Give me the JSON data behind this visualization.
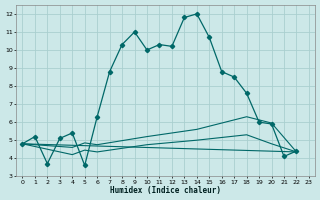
{
  "xlabel": "Humidex (Indice chaleur)",
  "bg_color": "#cce8e8",
  "grid_color": "#aacfcf",
  "line_color": "#006868",
  "xlim": [
    -0.5,
    23.5
  ],
  "ylim": [
    3,
    12.5
  ],
  "xticks": [
    0,
    1,
    2,
    3,
    4,
    5,
    6,
    7,
    8,
    9,
    10,
    11,
    12,
    13,
    14,
    15,
    16,
    17,
    18,
    19,
    20,
    21,
    22,
    23
  ],
  "yticks": [
    3,
    4,
    5,
    6,
    7,
    8,
    9,
    10,
    11,
    12
  ],
  "main_x": [
    0,
    1,
    2,
    3,
    4,
    5,
    6,
    7,
    8,
    9,
    10,
    11,
    12,
    13,
    14,
    15,
    16,
    17,
    18,
    19,
    20,
    21,
    22
  ],
  "main_y": [
    4.8,
    5.2,
    3.7,
    5.1,
    5.4,
    3.6,
    6.3,
    8.8,
    10.3,
    11.0,
    10.0,
    10.3,
    10.2,
    11.8,
    12.0,
    10.7,
    8.8,
    8.5,
    7.6,
    6.0,
    5.9,
    4.1,
    4.4
  ],
  "line1_x": [
    0,
    4,
    5,
    6,
    10,
    14,
    18,
    20,
    22
  ],
  "line1_y": [
    4.8,
    4.6,
    4.85,
    4.75,
    5.2,
    5.6,
    6.3,
    5.95,
    4.35
  ],
  "line2_x": [
    0,
    4,
    5,
    6,
    10,
    14,
    18,
    20,
    22
  ],
  "line2_y": [
    4.8,
    4.2,
    4.45,
    4.35,
    4.75,
    5.0,
    5.3,
    4.8,
    4.35
  ],
  "line3_x": [
    0,
    22
  ],
  "line3_y": [
    4.8,
    4.35
  ]
}
